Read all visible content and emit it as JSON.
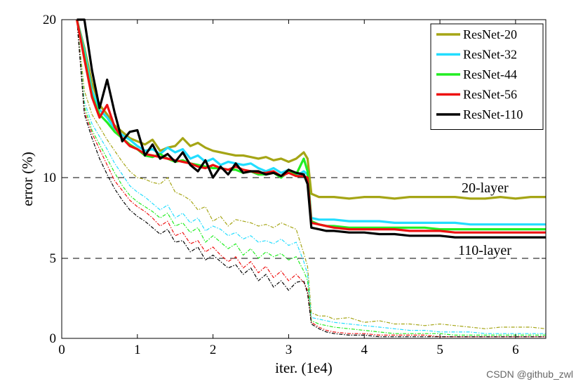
{
  "chart_data": {
    "type": "line",
    "title": "",
    "xlabel": "iter. (1e4)",
    "ylabel": "error (%)",
    "xlim": [
      0,
      6.4
    ],
    "ylim": [
      0,
      20
    ],
    "xticks": [
      "0",
      "1",
      "2",
      "3",
      "4",
      "5",
      "6"
    ],
    "yticks": [
      "0",
      "5",
      "10",
      "20"
    ],
    "grid": "dashed horizontal lines at 5, 10 and 20",
    "legend_position": "top-right",
    "annotations": [
      "20-layer",
      "110-layer"
    ],
    "x": [
      0.2,
      0.3,
      0.4,
      0.5,
      0.6,
      0.7,
      0.8,
      0.9,
      1.0,
      1.1,
      1.2,
      1.3,
      1.4,
      1.5,
      1.6,
      1.7,
      1.8,
      1.9,
      2.0,
      2.1,
      2.2,
      2.3,
      2.4,
      2.5,
      2.6,
      2.7,
      2.8,
      2.9,
      3.0,
      3.1,
      3.2,
      3.25,
      3.3,
      3.4,
      3.5,
      3.6,
      3.8,
      4.0,
      4.2,
      4.4,
      4.6,
      4.8,
      5.0,
      5.2,
      5.4,
      5.6,
      5.8,
      6.0,
      6.2,
      6.4
    ],
    "series": [
      {
        "name": "ResNet-20",
        "color": "#a5a515",
        "style": "solid",
        "values": [
          20,
          18.2,
          16.0,
          14.6,
          14.0,
          13.3,
          12.9,
          12.5,
          12.3,
          12.1,
          12.4,
          11.7,
          11.9,
          12.0,
          12.5,
          12.0,
          12.2,
          11.9,
          11.7,
          11.6,
          11.5,
          11.4,
          11.4,
          11.3,
          11.2,
          11.3,
          11.1,
          11.2,
          11.0,
          11.2,
          11.6,
          11.2,
          9.0,
          8.8,
          8.8,
          8.8,
          8.7,
          8.8,
          8.8,
          8.7,
          8.8,
          8.8,
          8.8,
          8.8,
          8.7,
          8.7,
          8.8,
          8.7,
          8.8,
          8.8
        ]
      },
      {
        "name": "ResNet-32",
        "color": "#22ddff",
        "style": "solid",
        "values": [
          20,
          18.0,
          15.5,
          14.3,
          13.8,
          13.1,
          12.7,
          12.4,
          12.0,
          11.7,
          11.8,
          11.5,
          11.9,
          11.6,
          11.8,
          11.2,
          11.4,
          11.0,
          11.2,
          10.8,
          11.0,
          10.9,
          10.8,
          10.9,
          10.6,
          10.4,
          10.6,
          10.3,
          10.5,
          10.1,
          10.4,
          10.2,
          7.5,
          7.4,
          7.4,
          7.4,
          7.3,
          7.3,
          7.3,
          7.2,
          7.2,
          7.2,
          7.2,
          7.2,
          7.1,
          7.1,
          7.1,
          7.1,
          7.1,
          7.1
        ]
      },
      {
        "name": "ResNet-44",
        "color": "#22ee22",
        "style": "solid",
        "values": [
          20,
          17.7,
          15.2,
          14.0,
          13.5,
          12.9,
          12.5,
          12.1,
          11.8,
          11.4,
          11.3,
          11.5,
          11.2,
          11.0,
          11.1,
          10.9,
          10.8,
          10.7,
          10.6,
          10.6,
          10.5,
          10.5,
          10.3,
          10.4,
          10.2,
          10.2,
          10.3,
          10.0,
          10.4,
          10.2,
          11.2,
          10.4,
          7.3,
          7.1,
          7.0,
          7.0,
          6.9,
          6.9,
          6.9,
          6.9,
          6.9,
          6.9,
          6.8,
          6.8,
          6.8,
          6.8,
          6.8,
          6.8,
          6.8,
          6.8
        ]
      },
      {
        "name": "ResNet-56",
        "color": "#ee1111",
        "style": "solid",
        "values": [
          20,
          17.5,
          15.1,
          13.8,
          14.6,
          13.2,
          12.5,
          12.0,
          11.8,
          11.5,
          11.4,
          11.3,
          11.2,
          11.1,
          11.0,
          10.9,
          10.7,
          10.6,
          10.8,
          10.6,
          10.5,
          10.7,
          10.5,
          10.4,
          10.3,
          10.3,
          10.4,
          10.1,
          10.3,
          10.1,
          10.1,
          10.0,
          7.2,
          7.1,
          7.0,
          6.9,
          6.8,
          6.8,
          6.8,
          6.8,
          6.7,
          6.7,
          6.7,
          6.6,
          6.6,
          6.6,
          6.6,
          6.6,
          6.6,
          6.6
        ]
      },
      {
        "name": "ResNet-110",
        "color": "#000000",
        "style": "solid",
        "values": [
          20,
          20.0,
          16.8,
          14.4,
          16.2,
          14.1,
          12.3,
          12.9,
          13.0,
          11.4,
          12.1,
          11.2,
          11.5,
          11.0,
          11.6,
          10.8,
          10.4,
          11.1,
          10.0,
          10.7,
          10.2,
          10.9,
          10.3,
          10.4,
          10.4,
          10.2,
          10.3,
          10.1,
          10.5,
          10.3,
          10.2,
          9.6,
          6.9,
          6.8,
          6.7,
          6.7,
          6.6,
          6.6,
          6.5,
          6.5,
          6.4,
          6.4,
          6.4,
          6.3,
          6.3,
          6.3,
          6.3,
          6.3,
          6.3,
          6.3
        ]
      },
      {
        "name": "",
        "color": "#a5a515",
        "style": "dash-dot",
        "values": [
          20,
          15.5,
          14.0,
          13.2,
          12.4,
          11.7,
          11.0,
          10.4,
          10.0,
          9.9,
          9.7,
          9.6,
          10.0,
          9.1,
          8.9,
          8.6,
          8.0,
          8.2,
          7.3,
          7.6,
          7.0,
          7.4,
          7.3,
          7.2,
          7.0,
          7.1,
          6.9,
          7.2,
          7.0,
          6.8,
          5.3,
          4.5,
          1.6,
          1.4,
          1.4,
          1.2,
          1.3,
          1.0,
          1.1,
          0.9,
          0.9,
          0.8,
          0.9,
          0.8,
          0.7,
          0.6,
          0.7,
          0.7,
          0.7,
          0.6
        ]
      },
      {
        "name": "",
        "color": "#22ddff",
        "style": "dash-dot",
        "values": [
          20,
          14.8,
          13.4,
          12.6,
          11.8,
          10.9,
          10.2,
          9.5,
          9.1,
          8.8,
          8.4,
          8.0,
          8.3,
          7.5,
          7.8,
          7.2,
          7.5,
          6.7,
          7.0,
          6.8,
          6.4,
          6.6,
          6.2,
          6.4,
          6.0,
          6.1,
          5.9,
          6.2,
          5.8,
          6.0,
          4.8,
          4.0,
          1.3,
          1.2,
          1.1,
          1.0,
          0.9,
          0.8,
          0.7,
          0.6,
          0.5,
          0.5,
          0.4,
          0.4,
          0.4,
          0.3,
          0.3,
          0.3,
          0.3,
          0.3
        ]
      },
      {
        "name": "",
        "color": "#22ee22",
        "style": "dash-dot",
        "values": [
          20,
          14.5,
          13.0,
          12.1,
          11.2,
          10.3,
          9.5,
          8.9,
          8.5,
          8.2,
          7.9,
          7.5,
          7.8,
          7.0,
          7.2,
          6.6,
          6.9,
          6.0,
          6.4,
          6.0,
          5.6,
          5.9,
          5.2,
          5.6,
          5.0,
          5.4,
          5.1,
          5.3,
          4.9,
          5.1,
          4.2,
          3.6,
          1.1,
          0.9,
          0.8,
          0.7,
          0.6,
          0.5,
          0.4,
          0.3,
          0.3,
          0.3,
          0.3,
          0.2,
          0.2,
          0.2,
          0.2,
          0.2,
          0.2,
          0.2
        ]
      },
      {
        "name": "",
        "color": "#ee1111",
        "style": "dash-dot",
        "values": [
          20,
          14.2,
          12.8,
          11.8,
          10.8,
          9.8,
          9.2,
          8.6,
          8.2,
          7.9,
          7.5,
          7.0,
          7.3,
          6.4,
          6.6,
          5.9,
          6.1,
          5.4,
          5.7,
          5.2,
          4.8,
          5.1,
          4.4,
          4.8,
          4.1,
          4.5,
          3.8,
          4.2,
          3.6,
          4.0,
          3.5,
          3.0,
          1.0,
          0.7,
          0.5,
          0.4,
          0.3,
          0.3,
          0.2,
          0.2,
          0.2,
          0.2,
          0.1,
          0.1,
          0.1,
          0.1,
          0.1,
          0.1,
          0.1,
          0.1
        ]
      },
      {
        "name": "",
        "color": "#000000",
        "style": "dash-dot",
        "values": [
          20,
          14.0,
          12.5,
          11.2,
          10.2,
          9.3,
          8.6,
          8.0,
          7.6,
          7.3,
          6.9,
          6.5,
          6.8,
          6.0,
          6.1,
          5.4,
          5.7,
          4.9,
          5.2,
          4.8,
          4.4,
          4.6,
          4.0,
          4.4,
          3.6,
          4.0,
          3.2,
          3.6,
          3.0,
          3.5,
          3.6,
          2.8,
          0.9,
          0.6,
          0.4,
          0.3,
          0.2,
          0.2,
          0.1,
          0.1,
          0.1,
          0.1,
          0.1,
          0.1,
          0.1,
          0.1,
          0.1,
          0.1,
          0.1,
          0.1
        ]
      }
    ]
  },
  "watermark": "CSDN @github_zwl"
}
